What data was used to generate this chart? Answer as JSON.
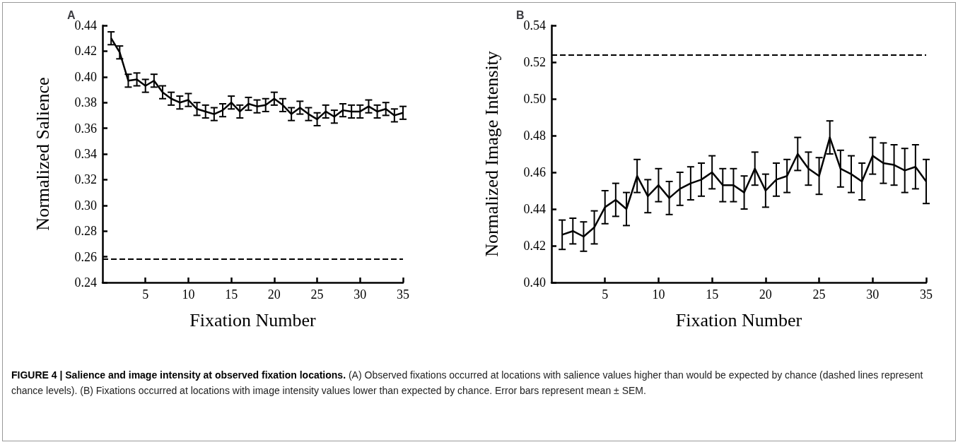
{
  "chart_data": [
    {
      "type": "line",
      "title": "A",
      "xlabel": "Fixation Number",
      "ylabel": "Normalized Salience",
      "x": [
        1,
        2,
        3,
        4,
        5,
        6,
        7,
        8,
        9,
        10,
        11,
        12,
        13,
        14,
        15,
        16,
        17,
        18,
        19,
        20,
        21,
        22,
        23,
        24,
        25,
        26,
        27,
        28,
        29,
        30,
        31,
        32,
        33,
        34,
        35
      ],
      "series": [
        {
          "color": "#000000",
          "values": [
            0.43,
            0.419,
            0.397,
            0.398,
            0.393,
            0.397,
            0.388,
            0.383,
            0.38,
            0.382,
            0.375,
            0.373,
            0.371,
            0.374,
            0.38,
            0.373,
            0.379,
            0.377,
            0.378,
            0.383,
            0.378,
            0.371,
            0.376,
            0.371,
            0.367,
            0.373,
            0.369,
            0.374,
            0.373,
            0.373,
            0.377,
            0.373,
            0.375,
            0.37,
            0.372
          ],
          "errors": [
            0.005,
            0.005,
            0.005,
            0.005,
            0.005,
            0.005,
            0.005,
            0.005,
            0.005,
            0.005,
            0.005,
            0.005,
            0.005,
            0.005,
            0.005,
            0.005,
            0.005,
            0.005,
            0.005,
            0.005,
            0.005,
            0.005,
            0.005,
            0.005,
            0.005,
            0.005,
            0.005,
            0.005,
            0.005,
            0.005,
            0.005,
            0.005,
            0.005,
            0.005,
            0.005
          ]
        }
      ],
      "xlim": [
        0,
        35
      ],
      "xticks": [
        5,
        10,
        15,
        20,
        25,
        30,
        35
      ],
      "ylim": [
        0.24,
        0.44
      ],
      "yticks": [
        0.24,
        0.26,
        0.28,
        {
          "value": 0.3,
          "label": "0.30"
        },
        0.32,
        0.34,
        0.36,
        0.38,
        {
          "value": 0.4,
          "label": "0.40"
        },
        0.42,
        0.44
      ],
      "ref_lines": [
        {
          "axis": "y",
          "value": 0.258,
          "color": "#000000",
          "line_style": "dashed"
        }
      ],
      "annotations": [
        "FIGURE 4 | Salience and image intensity at observed fixation locations.",
        "(A) Observed fixations occurred at locations with salience values higher than would be expected by chance (dashed lines represent chance levels). (B) Fixations occurred at locations with image intensity values lower than expected by chance. Error bars represent mean ± SEM."
      ]
    },
    {
      "type": "line",
      "title": "B",
      "xlabel": "Fixation Number",
      "ylabel": "Normalized Image Intensity",
      "x": [
        1,
        2,
        3,
        4,
        5,
        6,
        7,
        8,
        9,
        10,
        11,
        12,
        13,
        14,
        15,
        16,
        17,
        18,
        19,
        20,
        21,
        22,
        23,
        24,
        25,
        26,
        27,
        28,
        29,
        30,
        31,
        32,
        33,
        34,
        35
      ],
      "series": [
        {
          "color": "#000000",
          "values": [
            0.426,
            0.428,
            0.425,
            0.43,
            0.441,
            0.445,
            0.44,
            0.458,
            0.447,
            0.453,
            0.446,
            0.451,
            0.454,
            0.456,
            0.46,
            0.453,
            0.453,
            0.449,
            0.462,
            0.45,
            0.456,
            0.458,
            0.47,
            0.462,
            0.458,
            0.479,
            0.462,
            0.459,
            0.455,
            0.469,
            0.465,
            0.464,
            0.461,
            0.463,
            0.455
          ],
          "errors": [
            0.008,
            0.007,
            0.008,
            0.009,
            0.009,
            0.009,
            0.009,
            0.009,
            0.009,
            0.009,
            0.009,
            0.009,
            0.009,
            0.009,
            0.009,
            0.009,
            0.009,
            0.009,
            0.009,
            0.009,
            0.009,
            0.009,
            0.009,
            0.009,
            0.01,
            0.009,
            0.01,
            0.01,
            0.01,
            0.01,
            0.011,
            0.011,
            0.012,
            0.012,
            0.012
          ]
        }
      ],
      "xlim": [
        0,
        35
      ],
      "xticks": [
        5,
        10,
        15,
        20,
        25,
        30,
        35
      ],
      "ylim": [
        0.4,
        0.54
      ],
      "yticks": [
        {
          "value": 0.4,
          "label": "0.40"
        },
        0.42,
        0.44,
        0.46,
        0.48,
        {
          "value": 0.5,
          "label": "0.50"
        },
        0.52,
        0.54
      ],
      "ref_lines": [
        {
          "axis": "y",
          "value": 0.524,
          "color": "#000000",
          "line_style": "dashed"
        }
      ]
    }
  ]
}
